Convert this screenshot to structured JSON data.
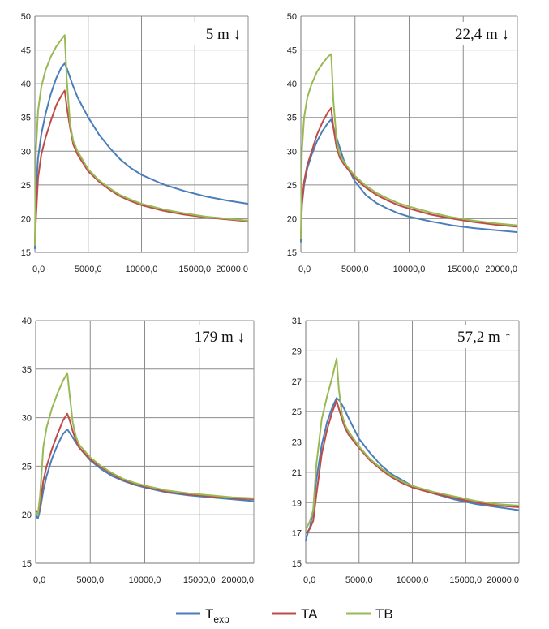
{
  "colors": {
    "texp": "#4a7ebb",
    "ta": "#be4b48",
    "tb": "#98b954",
    "grid": "#8c8c8c"
  },
  "legend": [
    {
      "key": "texp",
      "label": "T",
      "sub": "exp"
    },
    {
      "key": "ta",
      "label": "TA"
    },
    {
      "key": "tb",
      "label": "TB"
    }
  ],
  "chart_data": [
    {
      "type": "line",
      "panel": "top-left",
      "tag": "5 m ↓",
      "xlim": [
        0,
        20000
      ],
      "ylim": [
        15,
        50
      ],
      "xticks": [
        0,
        5000,
        10000,
        15000,
        20000
      ],
      "xtick_labels": [
        "0,0",
        "5000,0",
        "10000,0",
        "15000,0",
        "20000,0"
      ],
      "yticks": [
        15,
        20,
        25,
        30,
        35,
        40,
        45,
        50
      ],
      "ytick_labels": [
        "15",
        "20",
        "25",
        "30",
        "35",
        "40",
        "45",
        "50"
      ],
      "grid": true,
      "series": [
        {
          "key": "texp",
          "x": [
            0,
            100,
            300,
            600,
            1000,
            1500,
            2000,
            2500,
            2800,
            3000,
            3500,
            4000,
            5000,
            6000,
            7000,
            8000,
            9000,
            10000,
            12000,
            14000,
            16000,
            18000,
            20000
          ],
          "y": [
            15.5,
            24,
            29,
            32.5,
            35.5,
            38.5,
            40.8,
            42.5,
            43.0,
            42.3,
            40.0,
            38.0,
            35.0,
            32.5,
            30.5,
            28.8,
            27.5,
            26.5,
            25.1,
            24.1,
            23.3,
            22.7,
            22.2
          ]
        },
        {
          "key": "ta",
          "x": [
            0,
            100,
            300,
            600,
            1000,
            1500,
            2000,
            2500,
            2800,
            3000,
            3300,
            3600,
            4000,
            5000,
            6000,
            7000,
            8000,
            9000,
            10000,
            12000,
            14000,
            16000,
            18000,
            20000
          ],
          "y": [
            16,
            20,
            26,
            29.5,
            32,
            34.5,
            36.8,
            38.3,
            39.0,
            36.5,
            33.5,
            31.0,
            29.5,
            27.0,
            25.5,
            24.3,
            23.3,
            22.6,
            22.0,
            21.2,
            20.6,
            20.2,
            19.9,
            19.6
          ]
        },
        {
          "key": "tb",
          "x": [
            0,
            100,
            300,
            600,
            1000,
            1500,
            2000,
            2500,
            2800,
            3000,
            3300,
            3600,
            4000,
            5000,
            6000,
            7000,
            8000,
            9000,
            10000,
            12000,
            14000,
            16000,
            18000,
            20000
          ],
          "y": [
            16,
            30,
            36,
            39.5,
            42,
            44,
            45.5,
            46.6,
            47.2,
            40.5,
            34.0,
            31.5,
            30.0,
            27.3,
            25.7,
            24.5,
            23.5,
            22.8,
            22.2,
            21.4,
            20.8,
            20.3,
            20.0,
            19.7
          ]
        }
      ]
    },
    {
      "type": "line",
      "panel": "top-right",
      "tag": "22,4 m ↓",
      "xlim": [
        0,
        20000
      ],
      "ylim": [
        15,
        50
      ],
      "xticks": [
        0,
        5000,
        10000,
        15000,
        20000
      ],
      "xtick_labels": [
        "0,0",
        "5000,0",
        "10000,0",
        "15000,0",
        "20000,0"
      ],
      "yticks": [
        15,
        20,
        25,
        30,
        35,
        40,
        45,
        50
      ],
      "ytick_labels": [
        "15",
        "20",
        "25",
        "30",
        "35",
        "40",
        "45",
        "50"
      ],
      "grid": true,
      "series": [
        {
          "key": "texp",
          "x": [
            0,
            100,
            300,
            600,
            1000,
            1500,
            2000,
            2500,
            2800,
            3000,
            3500,
            4000,
            5000,
            6000,
            7000,
            8000,
            9000,
            10000,
            12000,
            14000,
            16000,
            18000,
            20000
          ],
          "y": [
            16.5,
            22,
            25,
            27.5,
            29.5,
            31.5,
            33.0,
            34.2,
            34.7,
            33.5,
            31.0,
            28.5,
            25.5,
            23.5,
            22.3,
            21.5,
            20.8,
            20.3,
            19.6,
            19.0,
            18.6,
            18.3,
            18.0
          ]
        },
        {
          "key": "ta",
          "x": [
            0,
            100,
            300,
            600,
            1000,
            1500,
            2000,
            2500,
            2800,
            3000,
            3300,
            3600,
            4000,
            5000,
            6000,
            7000,
            8000,
            9000,
            10000,
            12000,
            14000,
            16000,
            18000,
            20000
          ],
          "y": [
            17,
            22,
            25.5,
            28,
            30,
            32.5,
            34.3,
            35.8,
            36.4,
            33.5,
            30.5,
            29.0,
            28.0,
            26.0,
            24.6,
            23.5,
            22.7,
            22.0,
            21.5,
            20.6,
            20.0,
            19.5,
            19.1,
            18.8
          ]
        },
        {
          "key": "tb",
          "x": [
            0,
            100,
            300,
            600,
            1000,
            1500,
            2000,
            2500,
            2800,
            3000,
            3300,
            3600,
            4000,
            5000,
            6000,
            7000,
            8000,
            9000,
            10000,
            12000,
            14000,
            16000,
            18000,
            20000
          ],
          "y": [
            17,
            30,
            35,
            38,
            40,
            41.8,
            43.0,
            44.0,
            44.4,
            37.5,
            31.5,
            29.5,
            28.3,
            26.3,
            24.9,
            23.8,
            23.0,
            22.3,
            21.8,
            20.9,
            20.2,
            19.7,
            19.3,
            19.0
          ]
        }
      ]
    },
    {
      "type": "line",
      "panel": "bottom-left",
      "tag": "179 m ↓",
      "xlim": [
        0,
        20000
      ],
      "ylim": [
        15,
        40
      ],
      "xticks": [
        0,
        5000,
        10000,
        15000,
        20000
      ],
      "xtick_labels": [
        "0,0",
        "5000,0",
        "10000,0",
        "15000,0",
        "20000,0"
      ],
      "yticks": [
        15,
        20,
        25,
        30,
        35,
        40
      ],
      "ytick_labels": [
        "15",
        "20",
        "25",
        "30",
        "35",
        "40"
      ],
      "grid": true,
      "series": [
        {
          "key": "texp",
          "x": [
            0,
            200,
            400,
            700,
            1000,
            1500,
            2000,
            2500,
            2900,
            3200,
            3600,
            4000,
            5000,
            6000,
            7000,
            8000,
            9000,
            10000,
            12000,
            14000,
            16000,
            18000,
            20000
          ],
          "y": [
            20.0,
            19.6,
            20.5,
            22.5,
            24.0,
            25.8,
            27.2,
            28.3,
            28.8,
            28.3,
            27.6,
            26.9,
            25.6,
            24.7,
            24.0,
            23.5,
            23.1,
            22.8,
            22.3,
            22.0,
            21.8,
            21.6,
            21.4
          ]
        },
        {
          "key": "ta",
          "x": [
            0,
            200,
            400,
            700,
            1000,
            1500,
            2000,
            2500,
            2900,
            3100,
            3400,
            3700,
            4000,
            5000,
            6000,
            7000,
            8000,
            9000,
            10000,
            12000,
            14000,
            16000,
            18000,
            20000
          ],
          "y": [
            20.5,
            20.2,
            21.0,
            23.5,
            25.0,
            26.8,
            28.3,
            29.7,
            30.4,
            29.8,
            28.6,
            27.6,
            26.9,
            25.7,
            24.9,
            24.2,
            23.6,
            23.2,
            22.9,
            22.4,
            22.1,
            21.9,
            21.7,
            21.6
          ]
        },
        {
          "key": "tb",
          "x": [
            0,
            200,
            400,
            700,
            1000,
            1500,
            2000,
            2500,
            2900,
            3100,
            3400,
            3700,
            4000,
            5000,
            6000,
            7000,
            8000,
            9000,
            10000,
            12000,
            14000,
            16000,
            18000,
            20000
          ],
          "y": [
            20.3,
            20.0,
            22.0,
            27.0,
            29.0,
            31.0,
            32.5,
            33.8,
            34.6,
            32.5,
            29.5,
            28.0,
            27.2,
            25.9,
            25.0,
            24.3,
            23.7,
            23.3,
            23.0,
            22.5,
            22.2,
            22.0,
            21.8,
            21.7
          ]
        }
      ]
    },
    {
      "type": "line",
      "panel": "bottom-right",
      "tag": "57,2 m ↑",
      "xlim": [
        0,
        20000
      ],
      "ylim": [
        15,
        31
      ],
      "xticks": [
        0,
        5000,
        10000,
        15000,
        20000
      ],
      "xtick_labels": [
        "0,0",
        "5000,0",
        "10000,0",
        "15000,0",
        "20000,0"
      ],
      "yticks": [
        15,
        17,
        19,
        21,
        23,
        25,
        27,
        29,
        31
      ],
      "ytick_labels": [
        "15",
        "17",
        "19",
        "21",
        "23",
        "25",
        "27",
        "29",
        "31"
      ],
      "grid": true,
      "series": [
        {
          "key": "texp",
          "x": [
            0,
            200,
            400,
            700,
            1000,
            1500,
            2000,
            2500,
            2900,
            3200,
            3600,
            4000,
            5000,
            6000,
            7000,
            8000,
            9000,
            10000,
            12000,
            14000,
            16000,
            18000,
            20000
          ],
          "y": [
            16.5,
            17.0,
            17.4,
            18.5,
            20.5,
            22.8,
            24.3,
            25.3,
            25.9,
            25.7,
            25.2,
            24.6,
            23.2,
            22.3,
            21.5,
            20.9,
            20.5,
            20.1,
            19.6,
            19.2,
            18.9,
            18.7,
            18.5
          ]
        },
        {
          "key": "ta",
          "x": [
            0,
            200,
            400,
            700,
            1000,
            1500,
            2000,
            2500,
            2900,
            3100,
            3400,
            3700,
            4000,
            5000,
            6000,
            7000,
            8000,
            9000,
            10000,
            12000,
            14000,
            16000,
            18000,
            20000
          ],
          "y": [
            17.0,
            17.1,
            17.3,
            17.8,
            19.5,
            22.2,
            23.8,
            25.0,
            25.7,
            25.2,
            24.5,
            23.9,
            23.5,
            22.6,
            21.8,
            21.2,
            20.7,
            20.3,
            20.0,
            19.6,
            19.3,
            19.0,
            18.8,
            18.7
          ]
        },
        {
          "key": "tb",
          "x": [
            0,
            200,
            400,
            700,
            1000,
            1500,
            2000,
            2500,
            2900,
            3100,
            3400,
            3700,
            4000,
            5000,
            6000,
            7000,
            8000,
            9000,
            10000,
            12000,
            14000,
            16000,
            18000,
            20000
          ],
          "y": [
            17.2,
            17.5,
            17.8,
            18.5,
            21.5,
            24.5,
            26.0,
            27.3,
            28.5,
            26.5,
            24.8,
            24.1,
            23.7,
            22.7,
            21.9,
            21.3,
            20.8,
            20.4,
            20.1,
            19.7,
            19.4,
            19.1,
            18.9,
            18.8
          ]
        }
      ]
    }
  ]
}
